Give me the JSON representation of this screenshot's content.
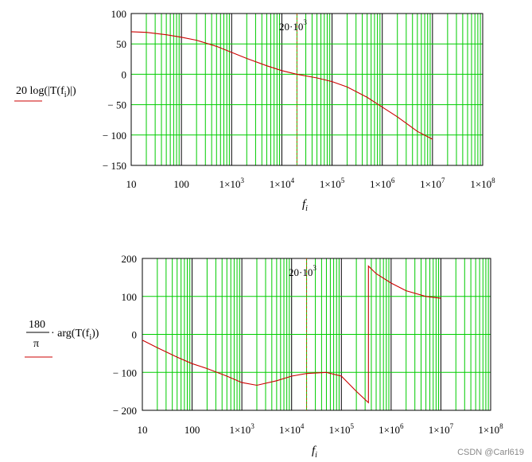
{
  "colors": {
    "grid": "#00cc00",
    "decade_line": "#000000",
    "trace": "#cc0000",
    "marker": "#aa5500",
    "ylabel_underline": "#cc0000"
  },
  "watermark": "CSDN @Carl619",
  "chart_data": [
    {
      "type": "line",
      "id": "magnitude",
      "xscale": "log",
      "xlim": [
        10,
        100000000
      ],
      "ylim": [
        -150,
        100
      ],
      "grid": true,
      "ylabel": {
        "pre": "20 log(|T(f",
        "sub": "i",
        "post": ")|)"
      },
      "xlabel": {
        "main": "f",
        "sub": "i"
      },
      "xticks": [
        {
          "base": "10",
          "exp": ""
        },
        {
          "base": "100",
          "exp": ""
        },
        {
          "base": "1×10",
          "exp": "3"
        },
        {
          "base": "1×10",
          "exp": "4"
        },
        {
          "base": "1×10",
          "exp": "5"
        },
        {
          "base": "1×10",
          "exp": "6"
        },
        {
          "base": "1×10",
          "exp": "7"
        },
        {
          "base": "1×10",
          "exp": "8"
        }
      ],
      "yticks": [
        "100",
        "50",
        "0",
        "− 50",
        "− 100",
        "− 150"
      ],
      "yvalues": [
        100,
        50,
        0,
        -50,
        -100,
        -150
      ],
      "marker": {
        "x": 20000,
        "label_base": "20·10",
        "label_exp": "3"
      },
      "series": [
        {
          "x": [
            10,
            20,
            50,
            100,
            200,
            500,
            1000,
            2000,
            5000,
            10000,
            20000,
            50000,
            100000,
            200000,
            500000,
            1000000,
            2000000,
            5000000,
            10000000
          ],
          "y": [
            70,
            69,
            65,
            61,
            56,
            46,
            36,
            26,
            14,
            6,
            0,
            -6,
            -12,
            -21,
            -38,
            -54,
            -70,
            -94,
            -107
          ]
        }
      ]
    },
    {
      "type": "line",
      "id": "phase",
      "xscale": "log",
      "xlim": [
        10,
        100000000
      ],
      "ylim": [
        -200,
        200
      ],
      "grid": true,
      "ylabel": {
        "num": "180",
        "den": "π",
        "pre": "· arg(T(f",
        "sub": "i",
        "post": "))"
      },
      "xlabel": {
        "main": "f",
        "sub": "i"
      },
      "xticks": [
        {
          "base": "10",
          "exp": ""
        },
        {
          "base": "100",
          "exp": ""
        },
        {
          "base": "1×10",
          "exp": "3"
        },
        {
          "base": "1×10",
          "exp": "4"
        },
        {
          "base": "1×10",
          "exp": "5"
        },
        {
          "base": "1×10",
          "exp": "6"
        },
        {
          "base": "1×10",
          "exp": "7"
        },
        {
          "base": "1×10",
          "exp": "8"
        }
      ],
      "yticks": [
        "200",
        "100",
        "0",
        "− 100",
        "− 200"
      ],
      "yvalues": [
        200,
        100,
        0,
        -100,
        -200
      ],
      "marker": {
        "x": 20000,
        "label_base": "20·10",
        "label_exp": "3"
      },
      "series": [
        {
          "x": [
            10,
            20,
            50,
            100,
            200,
            500,
            1000,
            2000,
            5000,
            10000,
            20000,
            50000,
            100000,
            200000,
            350000,
            350001,
            500000,
            1000000,
            2000000,
            5000000,
            10000000
          ],
          "y": [
            -15,
            -35,
            -60,
            -77,
            -90,
            -110,
            -127,
            -134,
            -122,
            -110,
            -103,
            -100,
            -110,
            -150,
            -180,
            180,
            160,
            135,
            115,
            100,
            95
          ]
        }
      ]
    }
  ]
}
